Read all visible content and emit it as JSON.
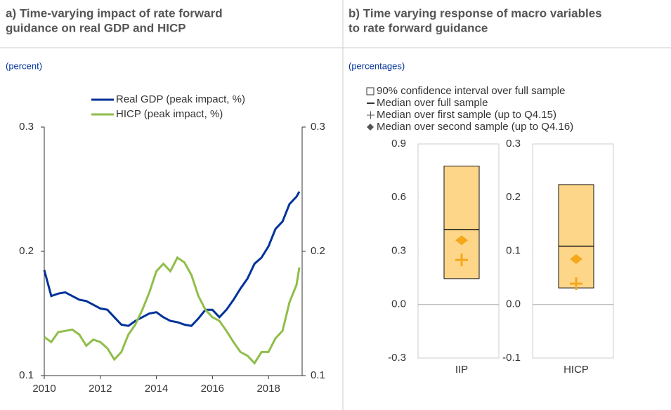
{
  "chart_data": [
    {
      "type": "line",
      "title": [
        "a) Time-varying impact of rate forward",
        "guidance on real GDP and HICP"
      ],
      "subtitle": "(percent)",
      "x": [
        2010,
        2010.25,
        2010.5,
        2010.75,
        2011,
        2011.25,
        2011.5,
        2011.75,
        2012,
        2012.25,
        2012.5,
        2012.75,
        2013,
        2013.25,
        2013.5,
        2013.75,
        2014,
        2014.25,
        2014.5,
        2014.75,
        2015,
        2015.25,
        2015.5,
        2015.75,
        2016,
        2016.25,
        2016.5,
        2016.75,
        2017,
        2017.25,
        2017.5,
        2017.75,
        2018,
        2018.25,
        2018.5,
        2018.75,
        2019,
        2019.1
      ],
      "series": [
        {
          "name": "Real GDP (peak impact, %)",
          "color": "#003299",
          "values": [
            0.185,
            0.164,
            0.166,
            0.167,
            0.164,
            0.161,
            0.16,
            0.157,
            0.154,
            0.153,
            0.147,
            0.141,
            0.14,
            0.144,
            0.147,
            0.15,
            0.151,
            0.147,
            0.144,
            0.143,
            0.141,
            0.14,
            0.146,
            0.153,
            0.153,
            0.147,
            0.153,
            0.161,
            0.17,
            0.178,
            0.19,
            0.195,
            0.204,
            0.218,
            0.224,
            0.238,
            0.244,
            0.248
          ]
        },
        {
          "name": "HICP (peak impact, %)",
          "color": "#8fbe4a",
          "values": [
            0.131,
            0.127,
            0.135,
            0.136,
            0.137,
            0.133,
            0.124,
            0.129,
            0.127,
            0.122,
            0.113,
            0.119,
            0.133,
            0.141,
            0.153,
            0.167,
            0.184,
            0.19,
            0.184,
            0.195,
            0.191,
            0.181,
            0.164,
            0.153,
            0.147,
            0.144,
            0.136,
            0.127,
            0.119,
            0.116,
            0.11,
            0.119,
            0.119,
            0.13,
            0.136,
            0.159,
            0.173,
            0.187
          ]
        }
      ],
      "xlim": [
        2010,
        2019.2
      ],
      "xticks": [
        2010,
        2012,
        2014,
        2016,
        2018
      ],
      "ylim": [
        0.1,
        0.3
      ],
      "yticks": [
        0.1,
        0.2,
        0.3
      ],
      "y2lim": [
        0.1,
        0.3
      ],
      "y2ticks": [
        0.1,
        0.2,
        0.3
      ]
    },
    {
      "type": "box",
      "title": [
        "b) Time varying response of macro variables",
        "to rate forward guidance"
      ],
      "subtitle": "(percentages)",
      "legend": [
        "90% confidence interval over full sample",
        "Median over full sample",
        "Median over first sample (up to Q4.15)",
        "Median over second sample (up to Q4.16)"
      ],
      "box_color": "#fdd68a",
      "marker_color": "#f5a81c",
      "panels": [
        {
          "category": "IIP",
          "ylim": [
            -0.3,
            0.9
          ],
          "yticks": [
            -0.3,
            {
              "value": 0,
              "label": "0.0"
            },
            0.3,
            0.6,
            0.9
          ],
          "ci": [
            0.145,
            0.776
          ],
          "median": 0.42,
          "median_first": 0.25,
          "median_second": 0.36
        },
        {
          "category": "HICP",
          "ylim": [
            -0.1,
            0.3
          ],
          "yticks": [
            -0.1,
            {
              "value": 0,
              "label": "0.0"
            },
            0.1,
            0.2,
            0.3
          ],
          "ci": [
            0.031,
            0.224
          ],
          "median": 0.109,
          "median_first": 0.039,
          "median_second": 0.085
        }
      ]
    }
  ]
}
